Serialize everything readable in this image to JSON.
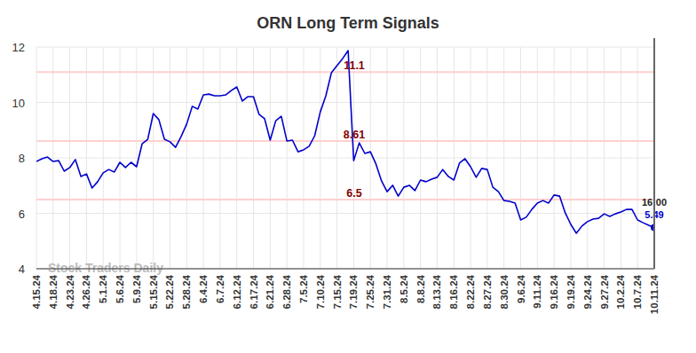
{
  "chart_data": {
    "type": "line",
    "title": "ORN Long Term Signals",
    "categories": [
      "4.15.24",
      null,
      null,
      "4.18.24",
      null,
      null,
      "4.23.24",
      null,
      null,
      "4.26.24",
      null,
      null,
      "5.1.24",
      null,
      null,
      "5.6.24",
      null,
      null,
      "5.9.24",
      null,
      null,
      "5.15.24",
      null,
      null,
      "5.22.24",
      null,
      null,
      "5.28.24",
      null,
      null,
      "6.4.24",
      null,
      null,
      "6.7.24",
      null,
      null,
      "6.12.24",
      null,
      null,
      "6.17.24",
      null,
      null,
      "6.21.24",
      null,
      null,
      "6.28.24",
      null,
      null,
      "7.5.24",
      null,
      null,
      "7.10.24",
      null,
      null,
      "7.15.24",
      null,
      null,
      "7.19.24",
      null,
      null,
      "7.25.24",
      null,
      null,
      "7.31.24",
      null,
      null,
      "8.5.24",
      null,
      null,
      "8.8.24",
      null,
      null,
      "8.13.24",
      null,
      null,
      "8.16.24",
      null,
      null,
      "8.22.24",
      null,
      null,
      "8.27.24",
      null,
      null,
      "8.30.24",
      null,
      null,
      "9.6.24",
      null,
      null,
      "9.11.24",
      null,
      null,
      "9.16.24",
      null,
      null,
      "9.19.24",
      null,
      null,
      "9.24.24",
      null,
      null,
      "9.27.24",
      null,
      null,
      "10.2.24",
      null,
      null,
      "10.7.24",
      null,
      null,
      "10.11.24"
    ],
    "series": [
      {
        "color": "#0000cc",
        "values": [
          7.87,
          7.97,
          8.03,
          7.87,
          7.9,
          7.52,
          7.65,
          7.94,
          7.33,
          7.42,
          6.91,
          7.14,
          7.46,
          7.58,
          7.49,
          7.84,
          7.65,
          7.84,
          7.68,
          8.51,
          8.67,
          9.6,
          9.38,
          8.67,
          8.58,
          8.38,
          8.77,
          9.22,
          9.86,
          9.76,
          10.27,
          10.3,
          10.24,
          10.24,
          10.27,
          10.43,
          10.56,
          10.05,
          10.21,
          10.21,
          9.57,
          9.41,
          8.64,
          9.34,
          9.5,
          8.61,
          8.64,
          8.22,
          8.29,
          8.42,
          8.8,
          9.66,
          10.24,
          11.07,
          11.33,
          11.58,
          11.87,
          7.9,
          8.54,
          8.16,
          8.22,
          7.78,
          7.17,
          6.78,
          7.01,
          6.62,
          6.94,
          7.01,
          6.82,
          7.2,
          7.14,
          7.23,
          7.3,
          7.58,
          7.33,
          7.2,
          7.81,
          7.97,
          7.68,
          7.3,
          7.62,
          7.58,
          6.94,
          6.78,
          6.46,
          6.43,
          6.37,
          5.76,
          5.86,
          6.14,
          6.37,
          6.46,
          6.37,
          6.66,
          6.62,
          6.02,
          5.6,
          5.28,
          5.54,
          5.7,
          5.79,
          5.82,
          5.98,
          5.89,
          5.98,
          6.05,
          6.14,
          6.14,
          5.76,
          5.66,
          5.57,
          5.49
        ]
      }
    ],
    "signal_lines": [
      11.1,
      8.61,
      6.5
    ],
    "last_label": "16:00",
    "watermark": "Stock Traders Daily",
    "ylim": [
      4,
      12
    ],
    "yticks": [
      4,
      6,
      8,
      10,
      12
    ],
    "grid": true
  }
}
